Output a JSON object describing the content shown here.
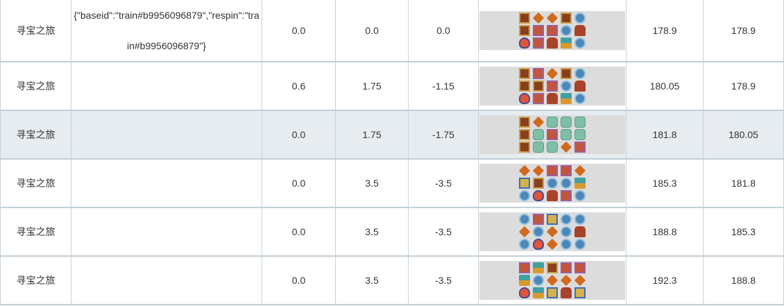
{
  "colors": {
    "border": "#c0d0d6",
    "hover_row": "#e7ecf0",
    "reel_bg": "#dcdcdc"
  },
  "symbol_legend": {
    "H": "hatbox-icon",
    "P": "pirate-icon",
    "D": "compass-icon",
    "C": "coin-icon",
    "T": "chest-icon",
    "M": "ship-icon",
    "L": "lantern-icon",
    "W": "scroll-wild-icon",
    "G": "money-icon"
  },
  "rows": [
    {
      "game": "寻宝之旅",
      "info": "{\"baseid\":\"train#b9956096879\",\"respin\":\"train#b9956096879\"}",
      "c1": "0.0",
      "c2": "0.0",
      "c3": "0.0",
      "reels": [
        [
          "H",
          "D",
          "D",
          "H",
          "C"
        ],
        [
          "H",
          "P",
          "P",
          "C",
          "T"
        ],
        [
          "L",
          "P",
          "T",
          "M",
          "C"
        ]
      ],
      "c4": "178.9",
      "c5": "178.9"
    },
    {
      "game": "寻宝之旅",
      "info": "",
      "c1": "0.6",
      "c2": "1.75",
      "c3": "-1.15",
      "reels": [
        [
          "H",
          "P",
          "D",
          "H",
          "C"
        ],
        [
          "H",
          "H",
          "P",
          "C",
          "T"
        ],
        [
          "L",
          "P",
          "T",
          "M",
          "C"
        ]
      ],
      "c4": "180.05",
      "c5": "178.9"
    },
    {
      "game": "寻宝之旅",
      "info": "",
      "c1": "0.0",
      "c2": "1.75",
      "c3": "-1.75",
      "reels": [
        [
          "H",
          "D",
          "G",
          "G",
          "G"
        ],
        [
          "H",
          "G",
          "P",
          "G",
          "G"
        ],
        [
          "H",
          "G",
          "G",
          "D",
          "P"
        ]
      ],
      "c4": "181.8",
      "c5": "180.05"
    },
    {
      "game": "寻宝之旅",
      "info": "",
      "c1": "0.0",
      "c2": "3.5",
      "c3": "-3.5",
      "reels": [
        [
          "D",
          "D",
          "P",
          "P",
          "D"
        ],
        [
          "W",
          "H",
          "C",
          "C",
          "M"
        ],
        [
          "C",
          "L",
          "T",
          "P",
          "C"
        ]
      ],
      "c4": "185.3",
      "c5": "181.8"
    },
    {
      "game": "寻宝之旅",
      "info": "",
      "c1": "0.0",
      "c2": "3.5",
      "c3": "-3.5",
      "reels": [
        [
          "C",
          "P",
          "W",
          "C",
          "C"
        ],
        [
          "D",
          "C",
          "D",
          "C",
          "T"
        ],
        [
          "C",
          "L",
          "D",
          "C",
          "C"
        ]
      ],
      "c4": "188.8",
      "c5": "185.3"
    },
    {
      "game": "寻宝之旅",
      "info": "",
      "c1": "0.0",
      "c2": "3.5",
      "c3": "-3.5",
      "reels": [
        [
          "P",
          "M",
          "H",
          "P",
          "P"
        ],
        [
          "M",
          "C",
          "D",
          "D",
          "D"
        ],
        [
          "L",
          "M",
          "W",
          "T",
          "W"
        ]
      ],
      "c4": "192.3",
      "c5": "188.8"
    }
  ]
}
